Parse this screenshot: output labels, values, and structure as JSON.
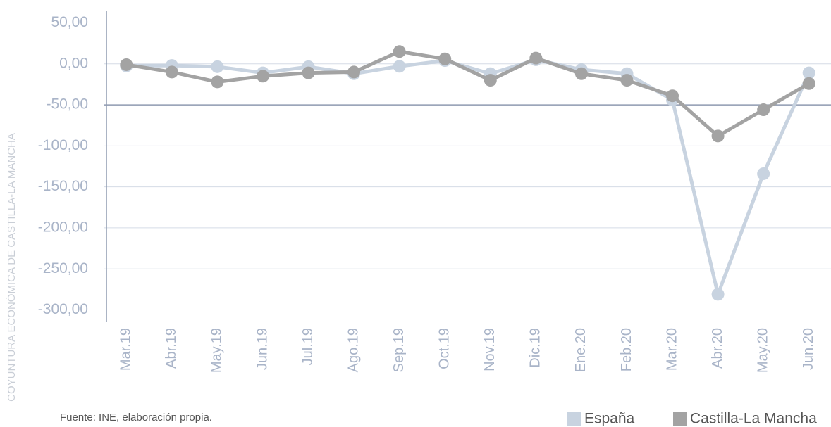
{
  "chart_data": {
    "type": "line",
    "side_text": "COYUNTURA ECONÓMICA DE CASTILLA-LA MANCHA",
    "source": "Fuente: INE, elaboración propia.",
    "categories": [
      "Mar.19",
      "Abr.19",
      "May.19",
      "Jun.19",
      "Jul.19",
      "Ago.19",
      "Sep.19",
      "Oct.19",
      "Nov.19",
      "Dic.19",
      "Ene.20",
      "Feb.20",
      "Mar.20",
      "Abr.20",
      "May.20",
      "Jun.20"
    ],
    "series": [
      {
        "name": "España",
        "color": "#c8d3e0",
        "values": [
          -2.6,
          -2,
          -3.5,
          -11,
          -3.5,
          -12,
          -3,
          4,
          -12,
          5,
          -7,
          -12,
          -44,
          -281,
          -134,
          -11
        ]
      },
      {
        "name": "Castilla-La Mancha",
        "color": "#a3a3a3",
        "values": [
          -1,
          -10,
          -22,
          -15,
          -11,
          -10,
          15,
          6,
          -20,
          7,
          -12,
          -20,
          -39,
          -88,
          -56,
          -24
        ]
      }
    ],
    "ylim": [
      -315,
      65
    ],
    "yticks": [
      {
        "value": 50,
        "label": "50,00"
      },
      {
        "value": 0,
        "label": "0,00"
      },
      {
        "value": -50,
        "label": "-50,00"
      },
      {
        "value": -100,
        "label": "-100,00"
      },
      {
        "value": -150,
        "label": "-150,00"
      },
      {
        "value": -200,
        "label": "-200,00"
      },
      {
        "value": -250,
        "label": "-250,00"
      },
      {
        "value": -300,
        "label": "-300,00"
      }
    ],
    "x_axis_at": -50,
    "grid": true,
    "legend": "bottom-right"
  }
}
